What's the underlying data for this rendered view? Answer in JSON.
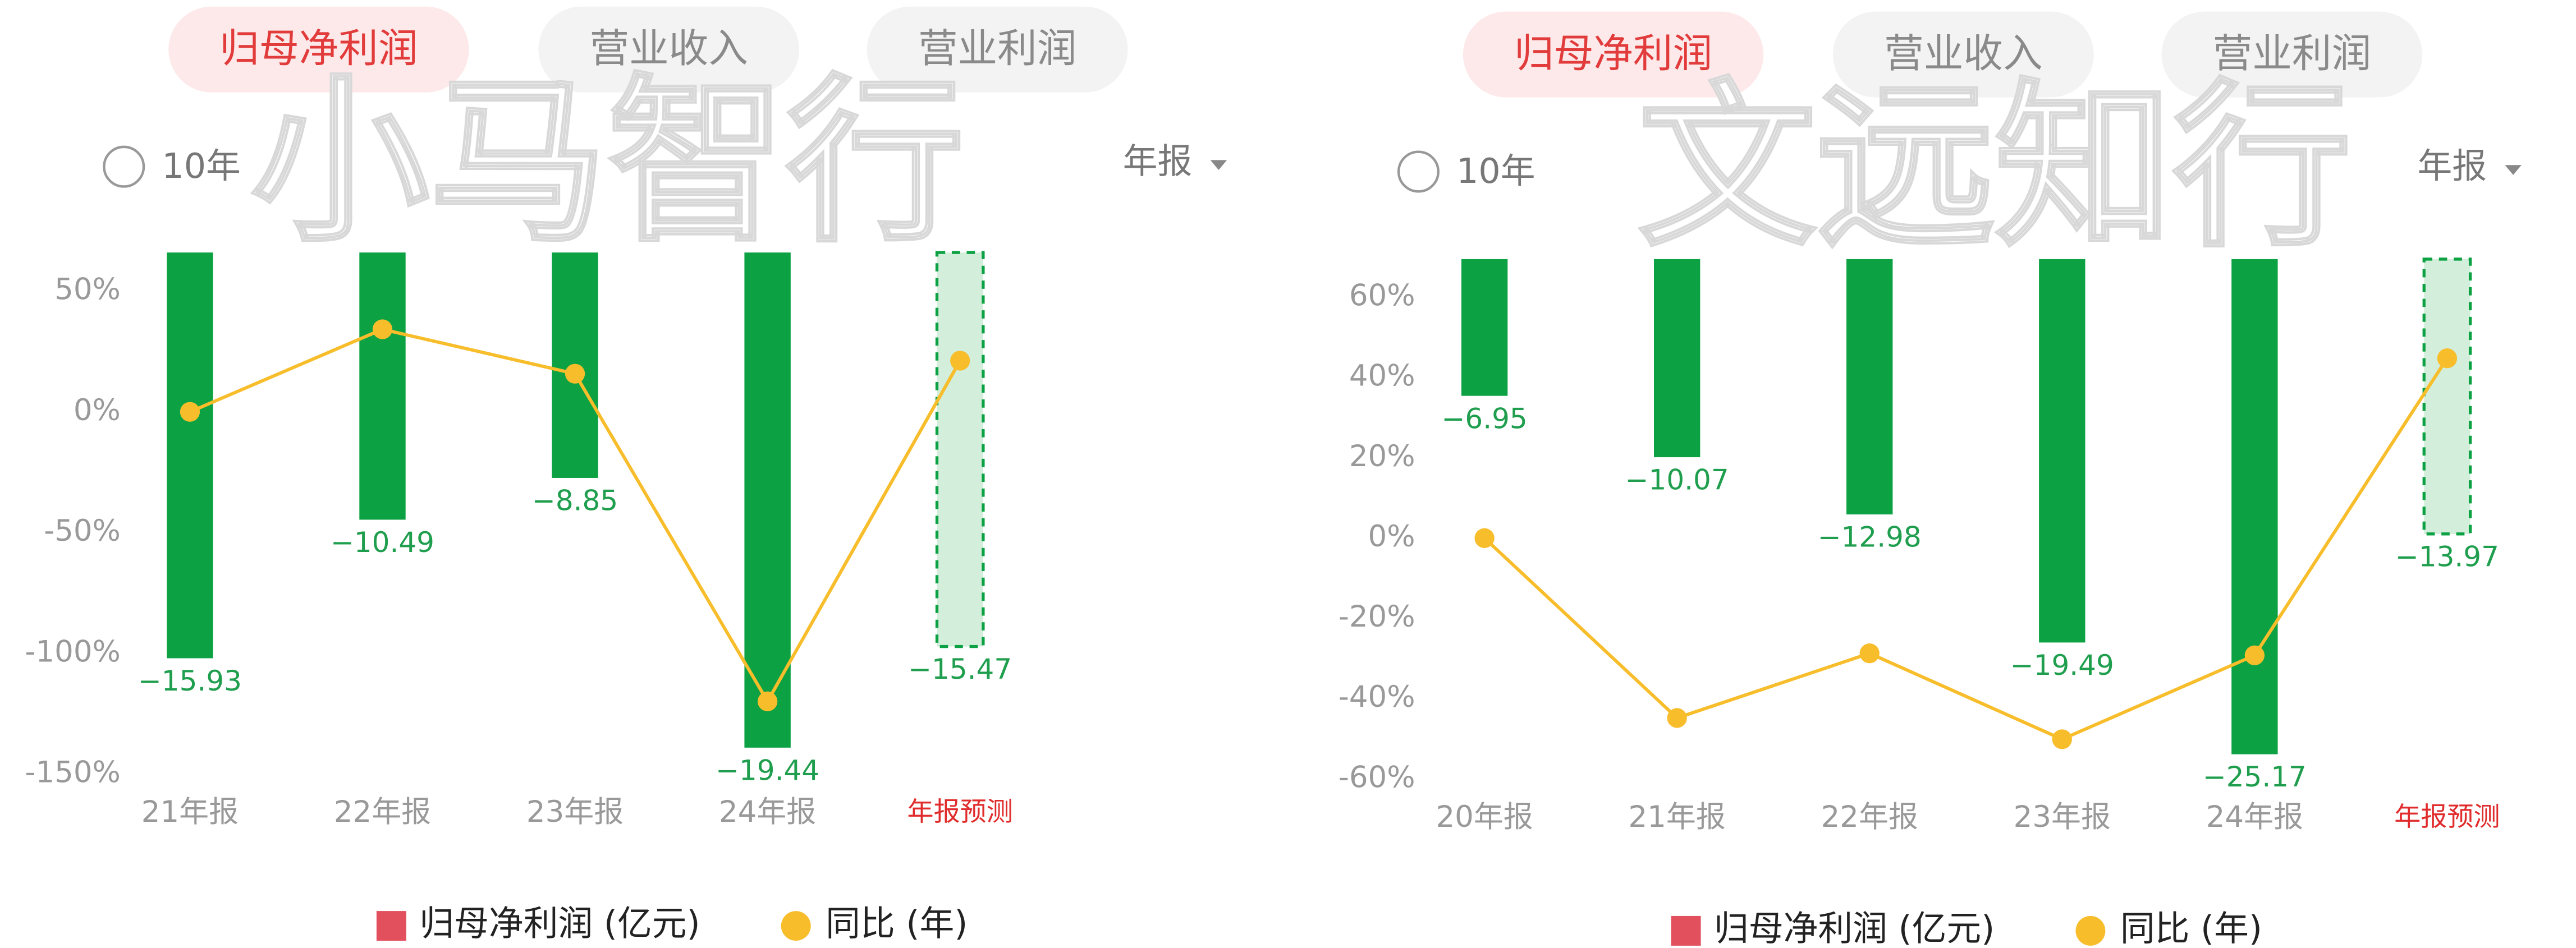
{
  "chart_data": [
    {
      "type": "combo",
      "watermark": "小马智行",
      "tabs": [
        "归母净利润",
        "营业收入",
        "营业利润"
      ],
      "period_option": "10年",
      "report_type": "年报",
      "categories": [
        "21年报",
        "22年报",
        "23年报",
        "24年报",
        "年报预测"
      ],
      "series": [
        {
          "name": "归母净利润 (亿元)",
          "color": "#e2505e",
          "bar_color": "#0ca143",
          "values": [
            -15.93,
            -10.49,
            -8.85,
            -19.44,
            -15.47
          ],
          "value_labels": [
            "−15.93",
            "−10.49",
            "−8.85",
            "−19.44",
            "−15.47"
          ]
        },
        {
          "name": "同比 (年)",
          "color": "#f8bd2b",
          "values": [
            0,
            34.2,
            15.8,
            -119.9,
            21.2
          ]
        }
      ],
      "ylim": [
        -150,
        66
      ],
      "yticks": [
        {
          "value": 50,
          "label": "50%"
        },
        {
          "value": 0,
          "label": "0%"
        },
        {
          "value": -50,
          "label": "-50%"
        },
        {
          "value": -100,
          "label": "-100%"
        },
        {
          "value": -150,
          "label": "-150%"
        }
      ]
    },
    {
      "type": "combo",
      "watermark": "文远知行",
      "tabs": [
        "归母净利润",
        "营业收入",
        "营业利润"
      ],
      "period_option": "10年",
      "report_type": "年报",
      "categories": [
        "20年报",
        "21年报",
        "22年报",
        "23年报",
        "24年报",
        "年报预测"
      ],
      "series": [
        {
          "name": "归母净利润 (亿元)",
          "color": "#e2505e",
          "bar_color": "#0ca143",
          "values": [
            -6.95,
            -10.07,
            -12.98,
            -19.49,
            -25.17,
            -13.97
          ],
          "value_labels": [
            "−6.95",
            "−10.07",
            "−12.98",
            "−19.49",
            "−25.17",
            "−13.97"
          ]
        },
        {
          "name": "同比 (年)",
          "color": "#f8bd2b",
          "values": [
            0,
            -44.8,
            -28.7,
            -50.1,
            -29.2,
            44.8
          ]
        }
      ],
      "ylim": [
        -60,
        69.5
      ],
      "yticks": [
        {
          "value": 60,
          "label": "60%"
        },
        {
          "value": 40,
          "label": "40%"
        },
        {
          "value": 20,
          "label": "20%"
        },
        {
          "value": 0,
          "label": "0%"
        },
        {
          "value": -20,
          "label": "-20%"
        },
        {
          "value": -40,
          "label": "-40%"
        },
        {
          "value": -60,
          "label": "-60%"
        }
      ]
    }
  ]
}
